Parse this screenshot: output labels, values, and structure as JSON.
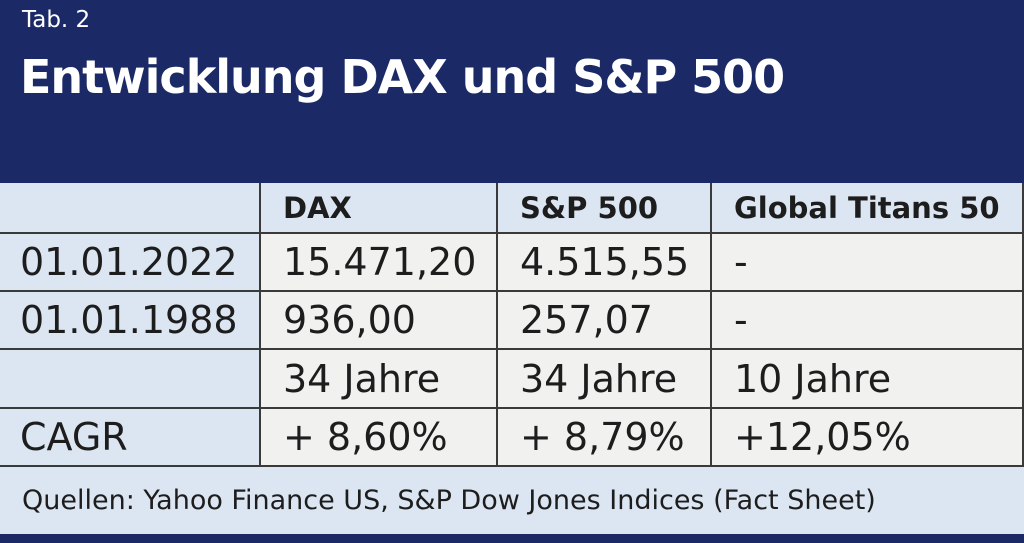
{
  "chart_data": {
    "type": "table",
    "tab_label": "Tab. 2",
    "title": "Entwicklung DAX und S&P 500",
    "columns": [
      "",
      "DAX",
      "S&P 500",
      "Global Titans 50"
    ],
    "rows": [
      [
        "01.01.2022",
        "15.471,20",
        "4.515,55",
        "-"
      ],
      [
        "01.01.1988",
        "936,00",
        "257,07",
        "-"
      ],
      [
        "",
        "34 Jahre",
        "34 Jahre",
        "10 Jahre"
      ],
      [
        "CAGR",
        "+ 8,60%",
        "+ 8,79%",
        "+12,05%"
      ]
    ],
    "source_note": "Quellen: Yahoo Finance US, S&P Dow Jones Indices (Fact Sheet)"
  },
  "colors": {
    "navy": "#1b2a66",
    "light_blue": "#dce6f2",
    "off_white": "#f1f1ef",
    "border": "#3a3a3a",
    "text_dark": "#1d1d1d",
    "text_light": "#ffffff"
  }
}
